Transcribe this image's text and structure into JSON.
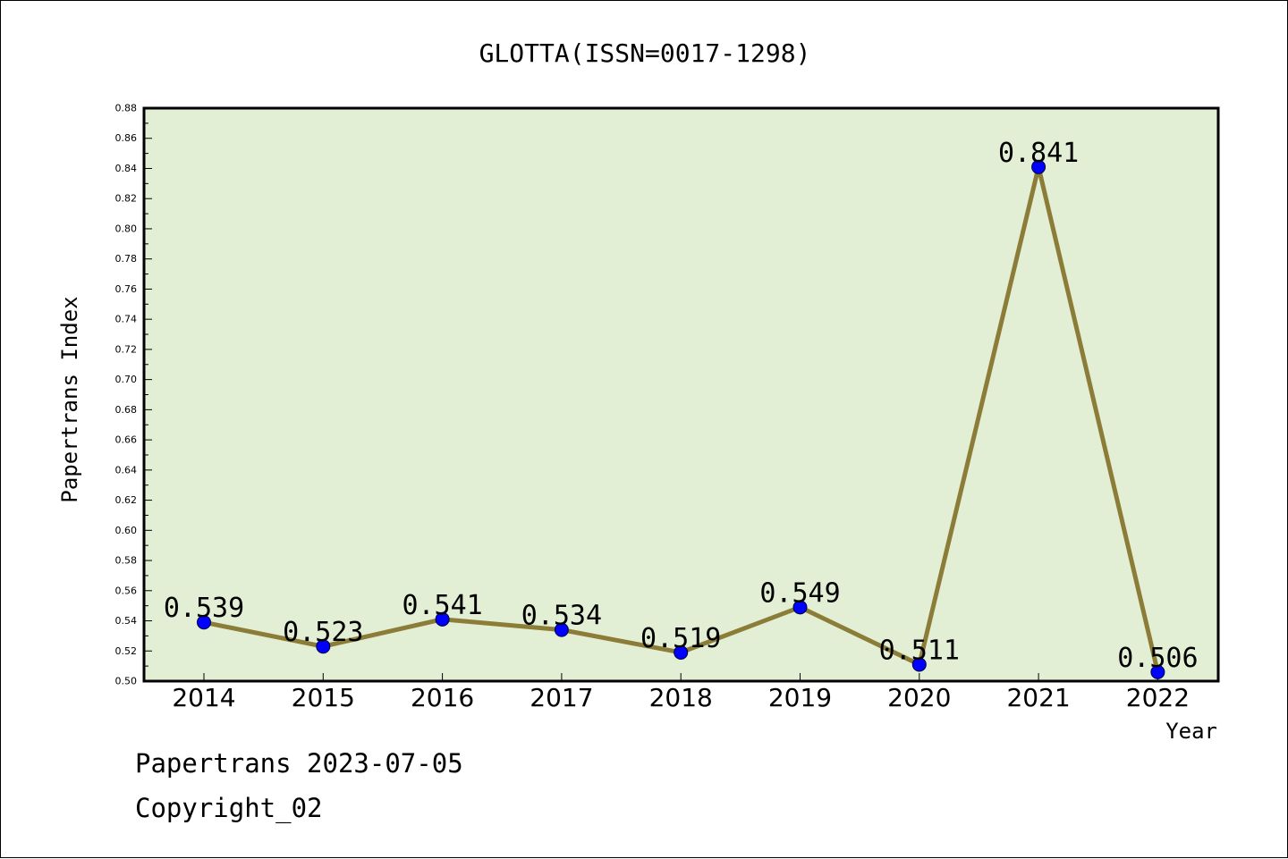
{
  "chart_data": {
    "type": "line",
    "title": "GLOTTA(ISSN=0017-1298)",
    "xlabel": "Year",
    "ylabel": "Papertrans Index",
    "categories": [
      "2014",
      "2015",
      "2016",
      "2017",
      "2018",
      "2019",
      "2020",
      "2021",
      "2022"
    ],
    "series": [
      {
        "values": [
          0.539,
          0.523,
          0.541,
          0.534,
          0.519,
          0.549,
          0.511,
          0.841,
          0.506
        ],
        "data_labels": [
          "0.539",
          "0.523",
          "0.541",
          "0.534",
          "0.519",
          "0.549",
          "0.511",
          "0.841",
          "0.506"
        ]
      }
    ],
    "ylim": [
      0.5,
      0.88
    ],
    "yticks": [
      "0.50",
      "0.52",
      "0.54",
      "0.56",
      "0.58",
      "0.60",
      "0.62",
      "0.64",
      "0.66",
      "0.68",
      "0.70",
      "0.72",
      "0.74",
      "0.76",
      "0.78",
      "0.80",
      "0.82",
      "0.84",
      "0.86",
      "0.88"
    ],
    "grid": false,
    "colors": {
      "plot_background": "#e2efd4",
      "line": "#8b7d37",
      "marker": "#0000ff"
    }
  },
  "footer": {
    "date_line": "Papertrans 2023-07-05",
    "copyright_line": "Copyright_02"
  }
}
